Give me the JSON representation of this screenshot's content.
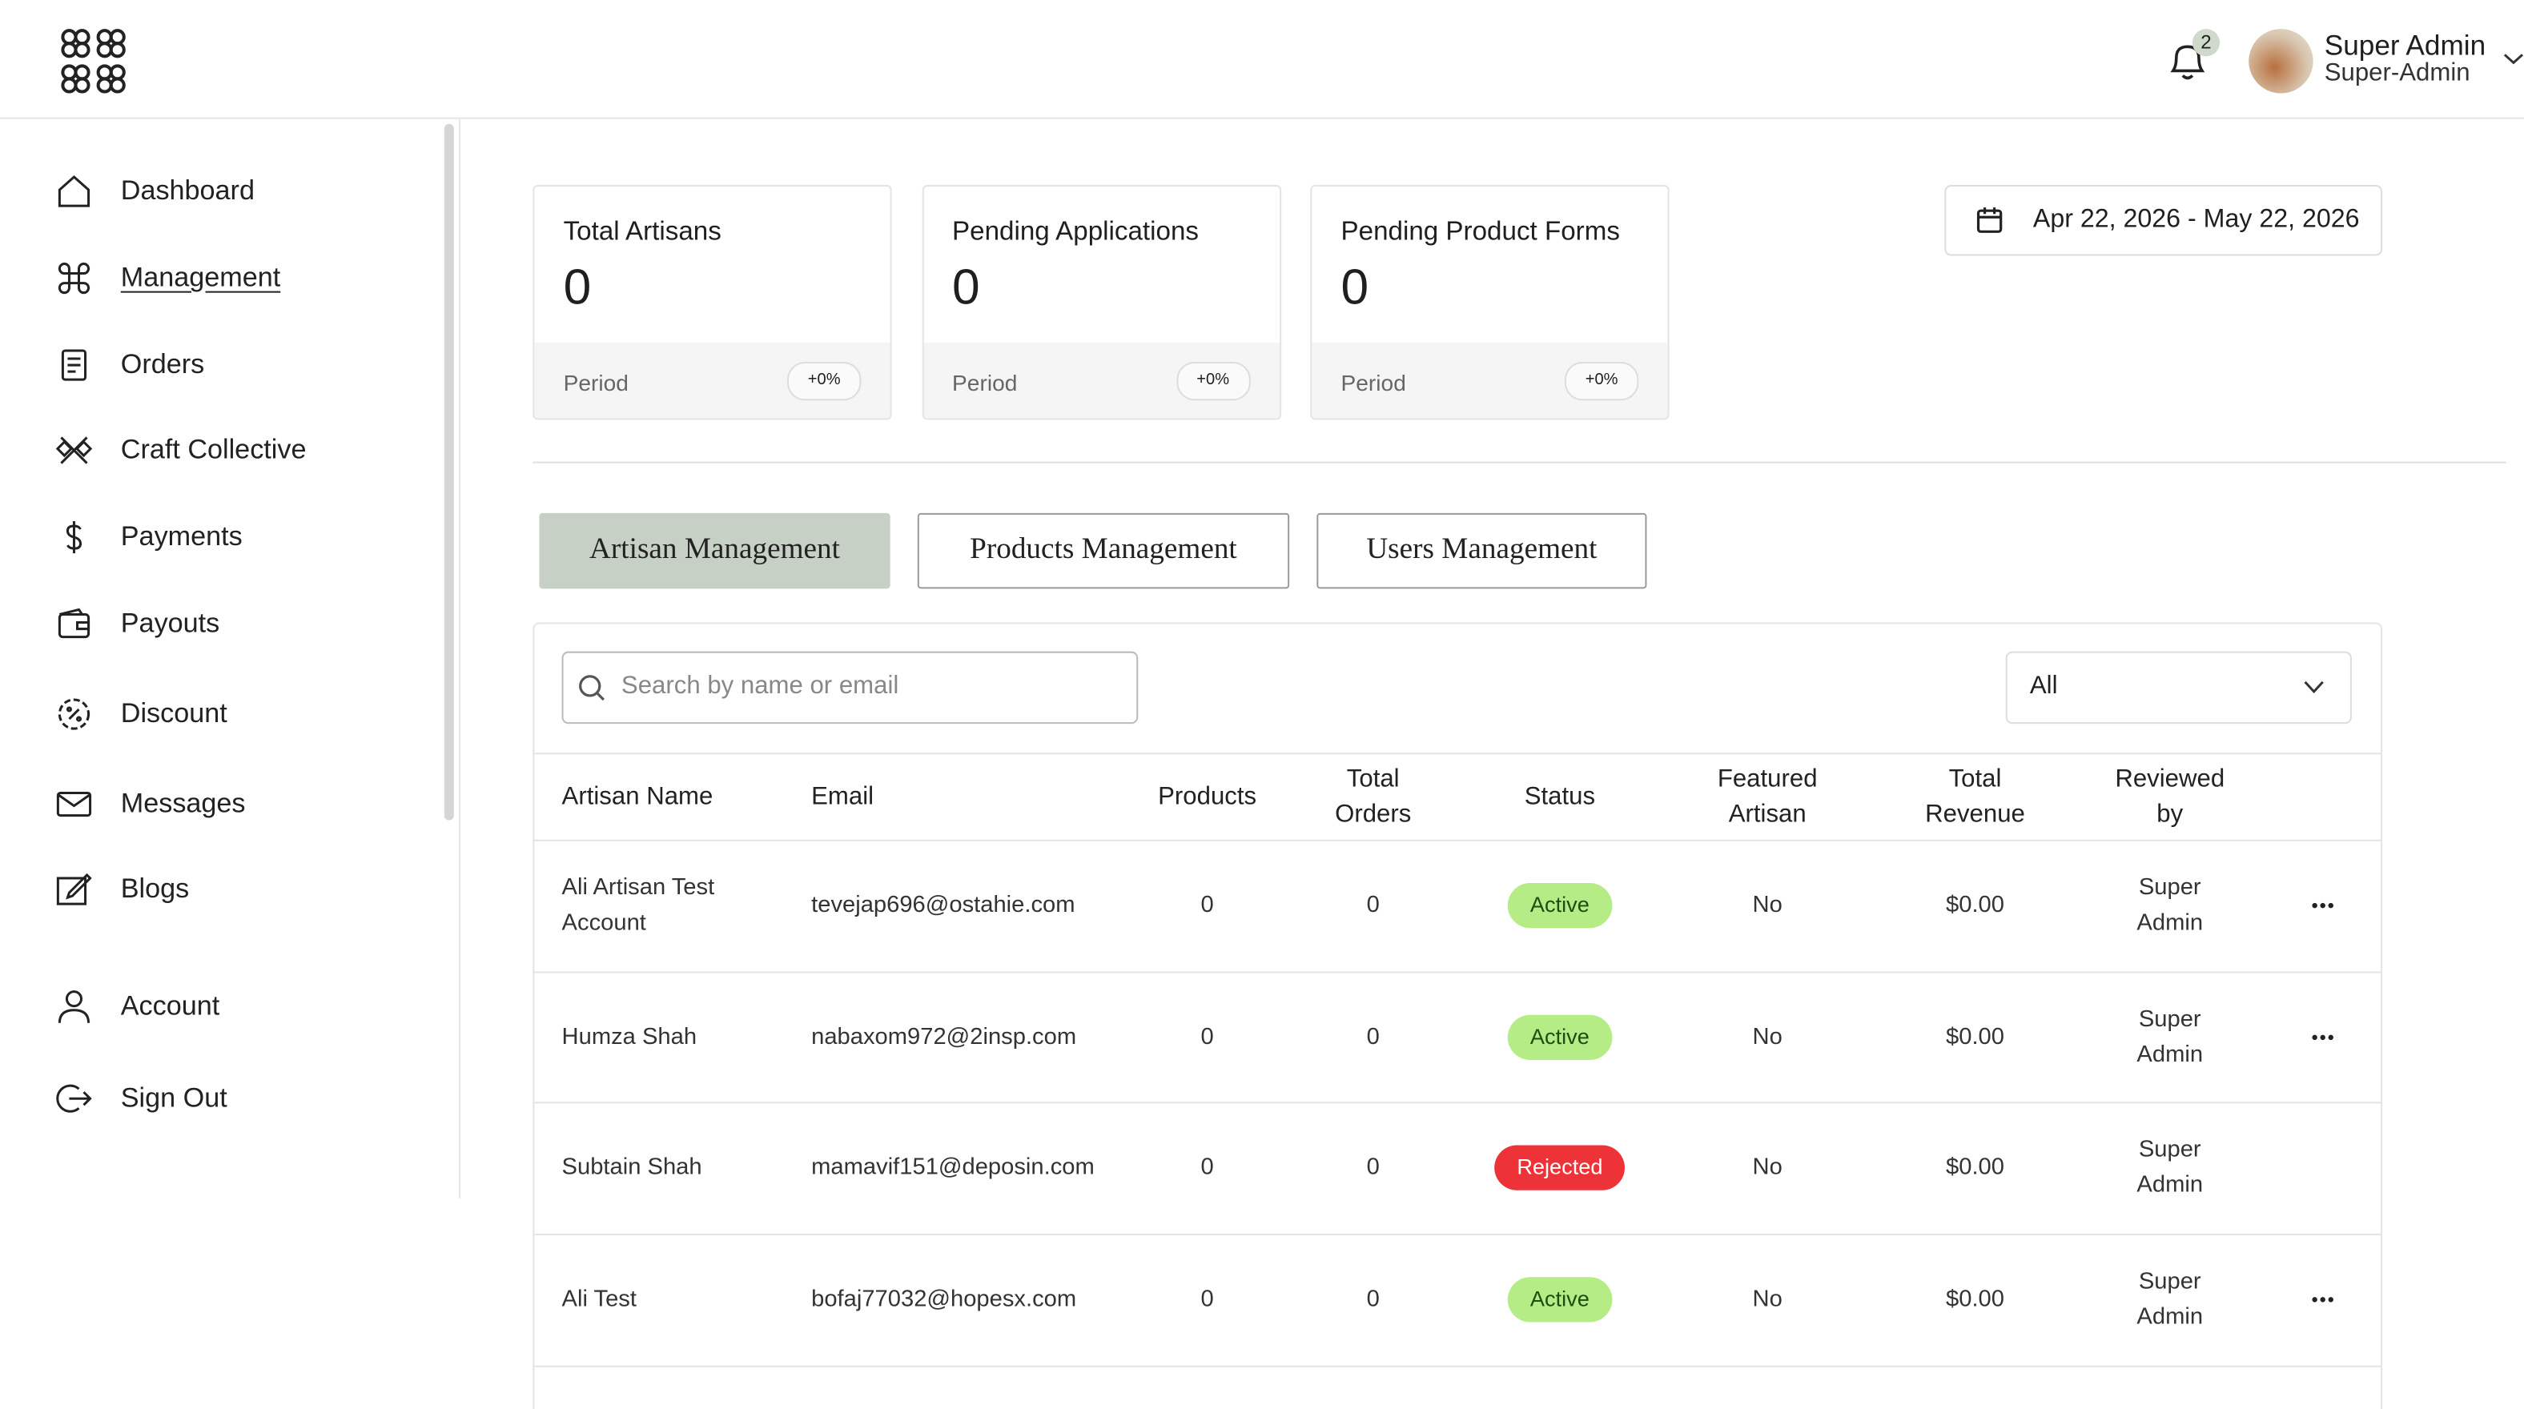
{
  "header": {
    "notification_count": "2",
    "user_name": "Super Admin",
    "user_role": "Super-Admin"
  },
  "sidebar": {
    "items": [
      "Dashboard",
      "Management",
      "Orders",
      "Craft Collective",
      "Payments",
      "Payouts",
      "Discount",
      "Messages",
      "Blogs"
    ],
    "account_items": [
      "Account",
      "Sign Out"
    ],
    "active_index": 1
  },
  "stats": [
    {
      "title": "Total Artisans",
      "value": "0",
      "period_label": "Period",
      "change": "+0%"
    },
    {
      "title": "Pending Applications",
      "value": "0",
      "period_label": "Period",
      "change": "+0%"
    },
    {
      "title": "Pending Product Forms",
      "value": "0",
      "period_label": "Period",
      "change": "+0%"
    }
  ],
  "date_range": "Apr 22, 2026 - May 22, 2026",
  "tabs": {
    "items": [
      "Artisan Management",
      "Products Management",
      "Users Management"
    ],
    "active_index": 0
  },
  "filters": {
    "search_placeholder": "Search by name or email",
    "status_filter": "All"
  },
  "table": {
    "columns": [
      "Artisan Name",
      "Email",
      "Products",
      "Total Orders",
      "Status",
      "Featured Artisan",
      "Total Revenue",
      "Reviewed by"
    ],
    "rows": [
      {
        "cells": [
          "Ali Artisan Test Account",
          "tevejap696@ostahie.com",
          "0",
          "0",
          "Active",
          "No",
          "$0.00",
          "Super Admin"
        ],
        "status_tone": "positive",
        "has_actions": true
      },
      {
        "cells": [
          "Humza Shah",
          "nabaxom972@2insp.com",
          "0",
          "0",
          "Active",
          "No",
          "$0.00",
          "Super Admin"
        ],
        "status_tone": "positive",
        "has_actions": true
      },
      {
        "cells": [
          "Subtain Shah",
          "mamavif151@deposin.com",
          "0",
          "0",
          "Rejected",
          "No",
          "$0.00",
          "Super Admin"
        ],
        "status_tone": "negative",
        "has_actions": false
      },
      {
        "cells": [
          "Ali Test",
          "bofaj77032@hopesx.com",
          "0",
          "0",
          "Active",
          "No",
          "$0.00",
          "Super Admin"
        ],
        "status_tone": "positive",
        "has_actions": true
      }
    ]
  }
}
